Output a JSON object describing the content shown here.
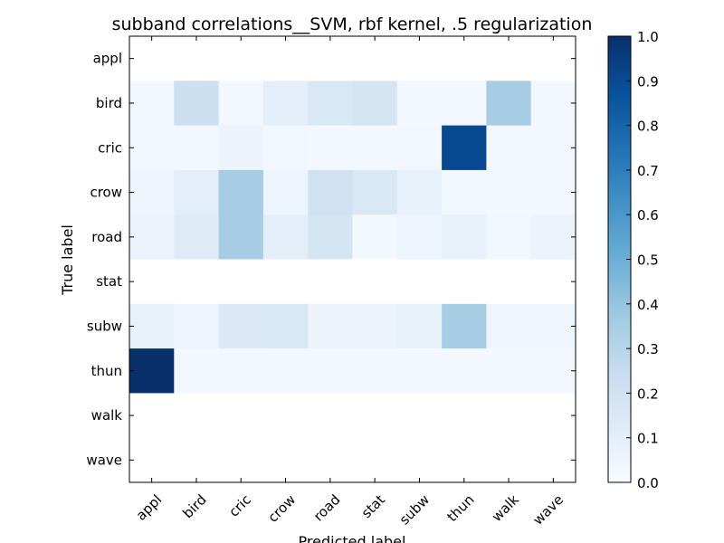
{
  "chart_data": {
    "type": "heatmap",
    "title": "subband correlations__SVM, rbf kernel, .5 regularization",
    "xlabel": "Predicted label",
    "ylabel": "True label",
    "x_categories": [
      "appl",
      "bird",
      "cric",
      "crow",
      "road",
      "stat",
      "subw",
      "thun",
      "walk",
      "wave"
    ],
    "y_categories": [
      "appl",
      "bird",
      "cric",
      "crow",
      "road",
      "stat",
      "subw",
      "thun",
      "walk",
      "wave"
    ],
    "values": [
      [
        0.0,
        0.0,
        0.0,
        0.0,
        0.0,
        0.0,
        0.0,
        0.0,
        0.0,
        0.0
      ],
      [
        0.03,
        0.22,
        0.03,
        0.1,
        0.15,
        0.17,
        0.02,
        0.02,
        0.35,
        0.03
      ],
      [
        0.02,
        0.02,
        0.06,
        0.03,
        0.02,
        0.02,
        0.03,
        0.9,
        0.02,
        0.02
      ],
      [
        0.05,
        0.1,
        0.35,
        0.05,
        0.2,
        0.15,
        0.08,
        0.02,
        0.02,
        0.02
      ],
      [
        0.06,
        0.12,
        0.35,
        0.1,
        0.18,
        0.02,
        0.05,
        0.08,
        0.03,
        0.06
      ],
      [
        0.0,
        0.0,
        0.0,
        0.0,
        0.0,
        0.0,
        0.0,
        0.0,
        0.0,
        0.0
      ],
      [
        0.08,
        0.05,
        0.14,
        0.15,
        0.06,
        0.06,
        0.08,
        0.35,
        0.04,
        0.04
      ],
      [
        1.0,
        0.02,
        0.02,
        0.02,
        0.02,
        0.02,
        0.02,
        0.02,
        0.02,
        0.02
      ],
      [
        0.0,
        0.0,
        0.0,
        0.0,
        0.0,
        0.0,
        0.0,
        0.0,
        0.0,
        0.0
      ],
      [
        0.0,
        0.0,
        0.0,
        0.0,
        0.0,
        0.0,
        0.0,
        0.0,
        0.0,
        0.0
      ]
    ],
    "colormap": "Blues",
    "colorbar_range": [
      0.0,
      1.0
    ],
    "colorbar_ticks": [
      "0.0",
      "0.1",
      "0.2",
      "0.3",
      "0.4",
      "0.5",
      "0.6",
      "0.7",
      "0.8",
      "0.9",
      "1.0"
    ],
    "grid": false
  }
}
